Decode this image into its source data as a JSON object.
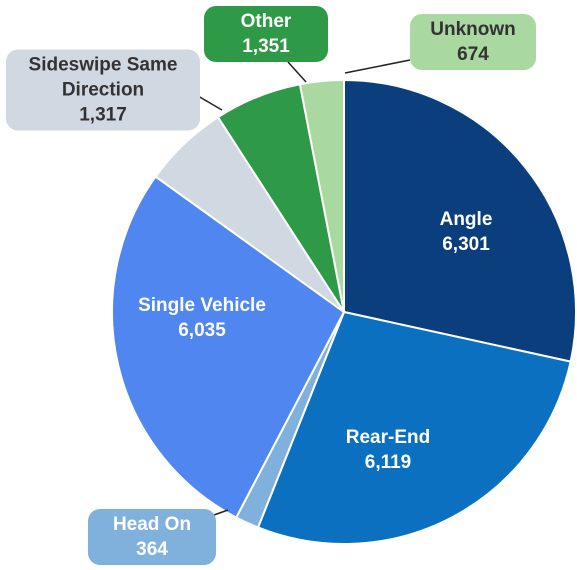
{
  "chart_data": {
    "type": "pie",
    "categories": [
      "Angle",
      "Rear-End",
      "Head On",
      "Single Vehicle",
      "Sideswipe Same Direction",
      "Other",
      "Unknown"
    ],
    "values": [
      6301,
      6119,
      364,
      6035,
      1317,
      1351,
      674
    ],
    "value_labels": [
      "6,301",
      "6,119",
      "364",
      "6,035",
      "1,317",
      "1,351",
      "674"
    ],
    "colors": [
      "#0b3e7c",
      "#0b70bf",
      "#80b1dd",
      "#4f86ef",
      "#d0d8e2",
      "#2e9a48",
      "#a9d9a0"
    ]
  }
}
